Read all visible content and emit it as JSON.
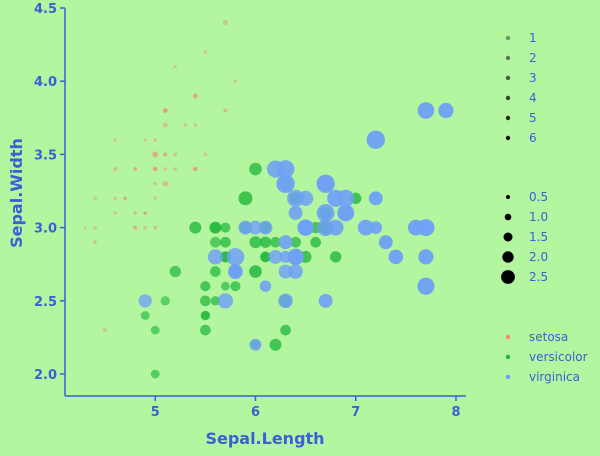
{
  "chart_data": {
    "type": "scatter",
    "xlabel": "Sepal.Length",
    "ylabel": "Sepal.Width",
    "xlim": [
      4.1,
      8.1
    ],
    "ylim": [
      1.85,
      4.5
    ],
    "x_ticks": [
      5,
      6,
      7,
      8
    ],
    "y_ticks": [
      2.0,
      2.5,
      3.0,
      3.5,
      4.0,
      4.5
    ],
    "x_tick_labels": [
      "5",
      "6",
      "7",
      "8"
    ],
    "y_tick_labels": [
      "2.0",
      "2.5",
      "3.0",
      "3.5",
      "4.0",
      "4.5"
    ],
    "grid": false,
    "legend_position": "right",
    "colors": {
      "background": "#b4f5a0",
      "axis": "#3a5fd6",
      "setosa": "#f08a6a",
      "versicolor": "#22b83c",
      "virginica": "#6fa0f5"
    },
    "legends": {
      "petal_length": {
        "labels": [
          "1",
          "2",
          "3",
          "4",
          "5",
          "6"
        ],
        "values": [
          1,
          2,
          3,
          4,
          5,
          6
        ]
      },
      "petal_width": {
        "labels": [
          "0.5",
          "1.0",
          "1.5",
          "2.0",
          "2.5"
        ],
        "values": [
          0.5,
          1.0,
          1.5,
          2.0,
          2.5
        ]
      },
      "species": {
        "labels": [
          "setosa",
          "versicolor",
          "virginica"
        ]
      }
    },
    "series": [
      {
        "name": "setosa",
        "points": [
          [
            5.1,
            3.5,
            1.4,
            0.2
          ],
          [
            4.9,
            3.0,
            1.4,
            0.2
          ],
          [
            4.7,
            3.2,
            1.3,
            0.2
          ],
          [
            4.6,
            3.1,
            1.5,
            0.2
          ],
          [
            5.0,
            3.6,
            1.4,
            0.2
          ],
          [
            5.4,
            3.9,
            1.7,
            0.4
          ],
          [
            4.6,
            3.4,
            1.4,
            0.3
          ],
          [
            5.0,
            3.4,
            1.5,
            0.2
          ],
          [
            4.4,
            2.9,
            1.4,
            0.2
          ],
          [
            4.9,
            3.1,
            1.5,
            0.1
          ],
          [
            5.4,
            3.7,
            1.5,
            0.2
          ],
          [
            4.8,
            3.4,
            1.6,
            0.2
          ],
          [
            4.8,
            3.0,
            1.4,
            0.1
          ],
          [
            4.3,
            3.0,
            1.1,
            0.1
          ],
          [
            5.8,
            4.0,
            1.2,
            0.2
          ],
          [
            5.7,
            4.4,
            1.5,
            0.4
          ],
          [
            5.4,
            3.9,
            1.3,
            0.4
          ],
          [
            5.1,
            3.5,
            1.4,
            0.3
          ],
          [
            5.7,
            3.8,
            1.7,
            0.3
          ],
          [
            5.1,
            3.8,
            1.5,
            0.3
          ],
          [
            5.4,
            3.4,
            1.7,
            0.2
          ],
          [
            5.1,
            3.7,
            1.5,
            0.4
          ],
          [
            4.6,
            3.6,
            1.0,
            0.2
          ],
          [
            5.1,
            3.3,
            1.7,
            0.5
          ],
          [
            4.8,
            3.4,
            1.9,
            0.2
          ],
          [
            5.0,
            3.0,
            1.6,
            0.2
          ],
          [
            5.0,
            3.4,
            1.6,
            0.4
          ],
          [
            5.2,
            3.5,
            1.5,
            0.2
          ],
          [
            5.2,
            3.4,
            1.4,
            0.2
          ],
          [
            4.7,
            3.2,
            1.6,
            0.2
          ],
          [
            4.8,
            3.1,
            1.6,
            0.2
          ],
          [
            5.4,
            3.4,
            1.5,
            0.4
          ],
          [
            5.2,
            4.1,
            1.5,
            0.1
          ],
          [
            5.5,
            4.2,
            1.4,
            0.2
          ],
          [
            4.9,
            3.1,
            1.5,
            0.2
          ],
          [
            5.0,
            3.2,
            1.2,
            0.2
          ],
          [
            5.5,
            3.5,
            1.3,
            0.2
          ],
          [
            4.9,
            3.6,
            1.4,
            0.1
          ],
          [
            4.4,
            3.0,
            1.3,
            0.2
          ],
          [
            5.1,
            3.4,
            1.5,
            0.2
          ],
          [
            5.0,
            3.5,
            1.3,
            0.3
          ],
          [
            4.5,
            2.3,
            1.3,
            0.3
          ],
          [
            4.4,
            3.2,
            1.3,
            0.2
          ],
          [
            5.0,
            3.5,
            1.6,
            0.6
          ],
          [
            5.1,
            3.8,
            1.9,
            0.4
          ],
          [
            4.8,
            3.0,
            1.4,
            0.3
          ],
          [
            5.1,
            3.8,
            1.6,
            0.2
          ],
          [
            4.6,
            3.2,
            1.4,
            0.2
          ],
          [
            5.3,
            3.7,
            1.5,
            0.2
          ],
          [
            5.0,
            3.3,
            1.4,
            0.2
          ]
        ]
      },
      {
        "name": "versicolor",
        "points": [
          [
            7.0,
            3.2,
            4.7,
            1.4
          ],
          [
            6.4,
            3.2,
            4.5,
            1.5
          ],
          [
            6.9,
            3.1,
            4.9,
            1.5
          ],
          [
            5.5,
            2.3,
            4.0,
            1.3
          ],
          [
            6.5,
            2.8,
            4.6,
            1.5
          ],
          [
            5.7,
            2.8,
            4.5,
            1.3
          ],
          [
            6.3,
            3.3,
            4.7,
            1.6
          ],
          [
            4.9,
            2.4,
            3.3,
            1.0
          ],
          [
            6.6,
            2.9,
            4.6,
            1.3
          ],
          [
            5.2,
            2.7,
            3.9,
            1.4
          ],
          [
            5.0,
            2.0,
            3.5,
            1.0
          ],
          [
            5.9,
            3.0,
            4.2,
            1.5
          ],
          [
            6.0,
            2.2,
            4.0,
            1.0
          ],
          [
            6.1,
            2.9,
            4.7,
            1.4
          ],
          [
            5.6,
            2.9,
            3.6,
            1.3
          ],
          [
            6.7,
            3.1,
            4.4,
            1.4
          ],
          [
            5.6,
            3.0,
            4.5,
            1.5
          ],
          [
            5.8,
            2.7,
            4.1,
            1.0
          ],
          [
            6.2,
            2.2,
            4.5,
            1.5
          ],
          [
            5.6,
            2.5,
            3.9,
            1.1
          ],
          [
            5.9,
            3.2,
            4.8,
            1.8
          ],
          [
            6.1,
            2.8,
            4.0,
            1.3
          ],
          [
            6.3,
            2.5,
            4.9,
            1.5
          ],
          [
            6.1,
            2.8,
            4.7,
            1.2
          ],
          [
            6.4,
            2.9,
            4.3,
            1.3
          ],
          [
            6.6,
            3.0,
            4.4,
            1.4
          ],
          [
            6.8,
            2.8,
            4.8,
            1.4
          ],
          [
            6.7,
            3.0,
            5.0,
            1.7
          ],
          [
            6.0,
            2.9,
            4.5,
            1.5
          ],
          [
            5.7,
            2.6,
            3.5,
            1.0
          ],
          [
            5.5,
            2.4,
            3.8,
            1.1
          ],
          [
            5.5,
            2.4,
            3.7,
            1.0
          ],
          [
            5.8,
            2.7,
            3.9,
            1.2
          ],
          [
            6.0,
            2.7,
            5.1,
            1.6
          ],
          [
            5.4,
            3.0,
            4.5,
            1.5
          ],
          [
            6.0,
            3.4,
            4.5,
            1.6
          ],
          [
            6.7,
            3.1,
            4.7,
            1.5
          ],
          [
            6.3,
            2.3,
            4.4,
            1.3
          ],
          [
            5.6,
            3.0,
            4.1,
            1.3
          ],
          [
            5.5,
            2.5,
            4.0,
            1.3
          ],
          [
            5.5,
            2.6,
            4.4,
            1.2
          ],
          [
            6.1,
            3.0,
            4.6,
            1.4
          ],
          [
            5.8,
            2.6,
            4.0,
            1.2
          ],
          [
            5.0,
            2.3,
            3.3,
            1.0
          ],
          [
            5.6,
            2.7,
            4.2,
            1.3
          ],
          [
            5.7,
            3.0,
            4.2,
            1.2
          ],
          [
            5.7,
            2.9,
            4.2,
            1.3
          ],
          [
            6.2,
            2.9,
            4.3,
            1.3
          ],
          [
            5.1,
            2.5,
            3.0,
            1.1
          ],
          [
            5.7,
            2.8,
            4.1,
            1.3
          ]
        ]
      },
      {
        "name": "virginica",
        "points": [
          [
            6.3,
            3.3,
            6.0,
            2.5
          ],
          [
            5.8,
            2.7,
            5.1,
            1.9
          ],
          [
            7.1,
            3.0,
            5.9,
            2.1
          ],
          [
            6.3,
            2.9,
            5.6,
            1.8
          ],
          [
            6.5,
            3.0,
            5.8,
            2.2
          ],
          [
            7.6,
            3.0,
            6.6,
            2.1
          ],
          [
            4.9,
            2.5,
            4.5,
            1.7
          ],
          [
            7.3,
            2.9,
            6.3,
            1.8
          ],
          [
            6.7,
            2.5,
            5.8,
            1.8
          ],
          [
            7.2,
            3.6,
            6.1,
            2.5
          ],
          [
            6.5,
            3.2,
            5.1,
            2.0
          ],
          [
            6.4,
            2.7,
            5.3,
            1.9
          ],
          [
            6.8,
            3.0,
            5.5,
            2.1
          ],
          [
            5.7,
            2.5,
            5.0,
            2.0
          ],
          [
            5.8,
            2.8,
            5.1,
            2.4
          ],
          [
            6.4,
            3.2,
            5.3,
            2.3
          ],
          [
            6.5,
            3.0,
            5.5,
            1.8
          ],
          [
            7.7,
            3.8,
            6.7,
            2.2
          ],
          [
            7.7,
            2.6,
            6.9,
            2.3
          ],
          [
            6.0,
            2.2,
            5.0,
            1.5
          ],
          [
            6.9,
            3.2,
            5.7,
            2.3
          ],
          [
            5.6,
            2.8,
            4.9,
            2.0
          ],
          [
            7.7,
            2.8,
            6.7,
            2.0
          ],
          [
            6.3,
            2.7,
            4.9,
            1.8
          ],
          [
            6.7,
            3.3,
            5.7,
            2.1
          ],
          [
            7.2,
            3.2,
            6.0,
            1.8
          ],
          [
            6.2,
            2.8,
            4.8,
            1.8
          ],
          [
            6.1,
            3.0,
            4.9,
            1.8
          ],
          [
            6.4,
            2.8,
            5.6,
            2.1
          ],
          [
            7.2,
            3.0,
            5.8,
            1.6
          ],
          [
            7.4,
            2.8,
            6.1,
            1.9
          ],
          [
            7.9,
            3.8,
            6.4,
            2.0
          ],
          [
            6.4,
            2.8,
            5.6,
            2.2
          ],
          [
            6.3,
            2.8,
            5.1,
            1.5
          ],
          [
            6.1,
            2.6,
            5.6,
            1.4
          ],
          [
            7.7,
            3.0,
            6.1,
            2.3
          ],
          [
            6.3,
            3.4,
            5.6,
            2.4
          ],
          [
            6.4,
            3.1,
            5.5,
            1.8
          ],
          [
            6.0,
            3.0,
            4.8,
            1.8
          ],
          [
            6.9,
            3.1,
            5.4,
            2.1
          ],
          [
            6.7,
            3.1,
            5.6,
            2.4
          ],
          [
            6.9,
            3.1,
            5.1,
            2.3
          ],
          [
            5.8,
            2.7,
            5.1,
            1.9
          ],
          [
            6.8,
            3.2,
            5.9,
            2.3
          ],
          [
            6.7,
            3.3,
            5.7,
            2.5
          ],
          [
            6.7,
            3.0,
            5.2,
            2.3
          ],
          [
            6.3,
            2.5,
            5.0,
            1.9
          ],
          [
            6.5,
            3.0,
            5.2,
            2.0
          ],
          [
            6.2,
            3.4,
            5.4,
            2.3
          ],
          [
            5.9,
            3.0,
            5.1,
            1.8
          ]
        ]
      }
    ]
  }
}
